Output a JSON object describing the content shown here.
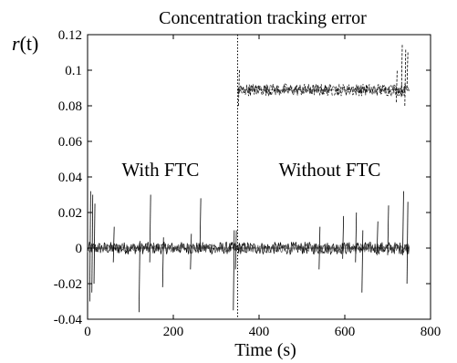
{
  "chart_data": {
    "type": "line",
    "title": "Concentration tracking error",
    "xlabel": "Time (s)",
    "ylabel": "r(t)",
    "ylabel_italic_part": "r",
    "ylabel_rest": "(t)",
    "xlim": [
      0,
      800
    ],
    "ylim": [
      -0.04,
      0.12
    ],
    "xticks": [
      0,
      200,
      400,
      600,
      800
    ],
    "xtick_labels": [
      "0",
      "200",
      "400",
      "600",
      "800"
    ],
    "yticks": [
      -0.04,
      -0.02,
      0,
      0.02,
      0.04,
      0.06,
      0.08,
      0.1,
      0.12
    ],
    "ytick_labels": [
      "-0.04",
      "-0.02",
      "0",
      "0.02",
      "0.04",
      "0.06",
      "0.08",
      "0.1",
      "0.12"
    ],
    "grid": false,
    "vertical_marker_x": 350,
    "annotations": [
      {
        "text": "With FTC",
        "x": 170,
        "y": 0.044
      },
      {
        "text": "Without FTC",
        "x": 565,
        "y": 0.044
      }
    ],
    "series": [
      {
        "style": "solid",
        "color": "#000000",
        "x": [
          0,
          50,
          100,
          150,
          200,
          250,
          300,
          350,
          400,
          450,
          500,
          550,
          600,
          650,
          700,
          750
        ],
        "y": [
          0,
          0,
          0,
          0,
          0,
          0,
          0,
          0,
          0,
          0,
          0,
          0,
          0,
          0,
          0,
          0
        ]
      },
      {
        "style": "dashed",
        "color": "#000000",
        "x": [
          0,
          50,
          100,
          150,
          200,
          250,
          300,
          345,
          350,
          400,
          450,
          500,
          550,
          600,
          650,
          700,
          750
        ],
        "y": [
          0,
          0,
          0,
          0,
          0,
          0,
          0,
          0,
          0.089,
          0.089,
          0.089,
          0.089,
          0.089,
          0.089,
          0.089,
          0.089,
          0.089
        ]
      }
    ],
    "spikes": [
      {
        "x": 5,
        "lo": -0.03,
        "hi": 0.032
      },
      {
        "x": 10,
        "lo": -0.025,
        "hi": 0.03
      },
      {
        "x": 15,
        "lo": -0.02,
        "hi": 0.025
      },
      {
        "x": 60,
        "lo": -0.008,
        "hi": 0.012
      },
      {
        "x": 120,
        "lo": -0.036,
        "hi": 0.004
      },
      {
        "x": 145,
        "lo": -0.008,
        "hi": 0.03
      },
      {
        "x": 175,
        "lo": -0.022,
        "hi": 0.006
      },
      {
        "x": 240,
        "lo": -0.012,
        "hi": 0.008
      },
      {
        "x": 262,
        "lo": -0.002,
        "hi": 0.028
      },
      {
        "x": 340,
        "lo": -0.035,
        "hi": 0.01
      },
      {
        "x": 345,
        "lo": -0.012,
        "hi": 0.01
      },
      {
        "x": 540,
        "lo": -0.012,
        "hi": 0.012
      },
      {
        "x": 595,
        "lo": -0.006,
        "hi": 0.018
      },
      {
        "x": 625,
        "lo": -0.008,
        "hi": 0.02
      },
      {
        "x": 640,
        "lo": -0.025,
        "hi": 0.01
      },
      {
        "x": 675,
        "lo": -0.004,
        "hi": 0.015
      },
      {
        "x": 700,
        "lo": -0.004,
        "hi": 0.024
      },
      {
        "x": 735,
        "lo": -0.004,
        "hi": 0.032
      },
      {
        "x": 745,
        "lo": -0.02,
        "hi": 0.026
      }
    ],
    "upper_spikes": [
      {
        "x": 352,
        "lo": 0.08,
        "hi": 0.1
      },
      {
        "x": 720,
        "lo": 0.082,
        "hi": 0.1
      },
      {
        "x": 732,
        "lo": 0.085,
        "hi": 0.115
      },
      {
        "x": 740,
        "lo": 0.08,
        "hi": 0.112
      },
      {
        "x": 745,
        "lo": 0.09,
        "hi": 0.11
      }
    ]
  }
}
